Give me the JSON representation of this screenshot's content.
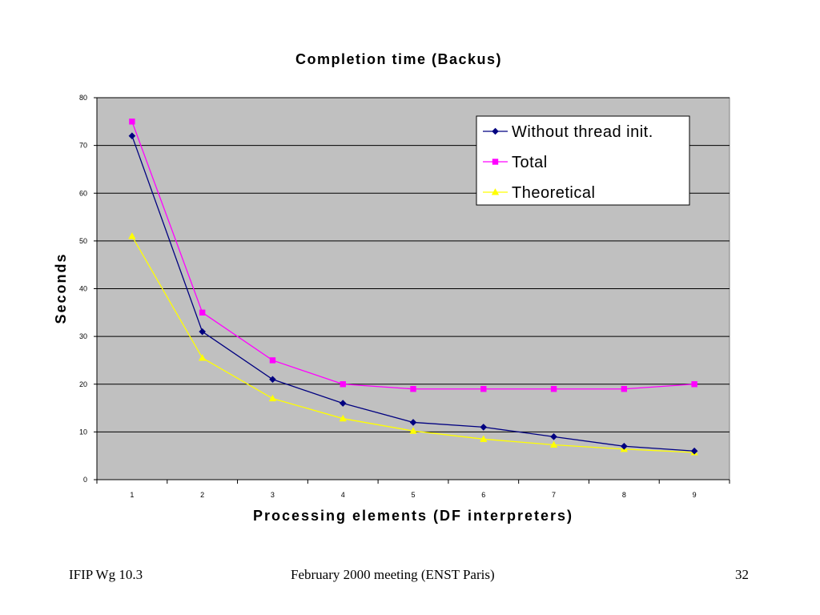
{
  "chart_data": {
    "type": "line",
    "title": "Completion time (Backus)",
    "xlabel": "Processing elements (DF interpreters)",
    "ylabel": "Seconds",
    "categories": [
      "1",
      "2",
      "3",
      "4",
      "5",
      "6",
      "7",
      "8",
      "9"
    ],
    "ylim": [
      0,
      80
    ],
    "yticks": [
      0,
      10,
      20,
      30,
      40,
      50,
      60,
      70,
      80
    ],
    "grid": true,
    "legend_position": "top-right",
    "plot_background": "#c0c0c0",
    "series": [
      {
        "name": "Without thread init.",
        "color": "#000080",
        "marker": "diamond",
        "values": [
          72,
          31,
          21,
          16,
          12,
          11,
          9,
          7,
          6
        ]
      },
      {
        "name": "Total",
        "color": "#ff00ff",
        "marker": "square",
        "values": [
          75,
          35,
          25,
          20,
          19,
          19,
          19,
          19,
          20
        ]
      },
      {
        "name": "Theoretical",
        "color": "#ffff00",
        "marker": "triangle",
        "values": [
          51,
          25.5,
          17,
          12.8,
          10.2,
          8.5,
          7.3,
          6.4,
          5.7
        ]
      }
    ]
  },
  "footer": {
    "left": "IFIP Wg 10.3",
    "center": "February 2000 meeting (ENST Paris)",
    "right": "32"
  }
}
